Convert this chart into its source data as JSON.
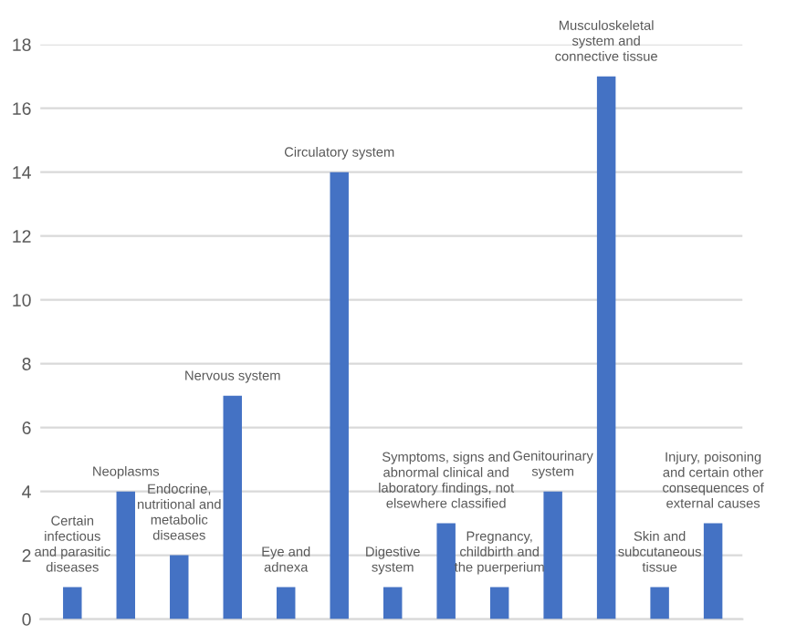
{
  "chart_data": {
    "type": "bar",
    "categories": [
      "Certain\ninfectious\nand parasitic\ndiseases",
      "Neoplasms",
      "Endocrine,\nnutritional and\nmetabolic\ndiseases",
      "Nervous system",
      "Eye and\nadnexa",
      "Circulatory system",
      "Digestive\nsystem",
      "Symptoms, signs and\nabnormal clinical and\nlaboratory findings, not\nelsewhere classified",
      "Pregnancy,\nchildbirth and\nthe puerperium",
      "Genitourinary\nsystem",
      "Musculoskeletal\nsystem and\nconnective tissue",
      "Skin and\nsubcutaneous\ntissue",
      "Injury, poisoning\nand certain other\nconsequences of\nexternal causes"
    ],
    "values": [
      1,
      4,
      2,
      7,
      1,
      14,
      1,
      3,
      1,
      4,
      17,
      1,
      3
    ],
    "color": "#4472c4",
    "ylim": [
      0,
      18
    ],
    "yticks": [
      0,
      2,
      4,
      6,
      8,
      10,
      12,
      14,
      16,
      18
    ],
    "grid": "y",
    "tick_labels": "y"
  }
}
